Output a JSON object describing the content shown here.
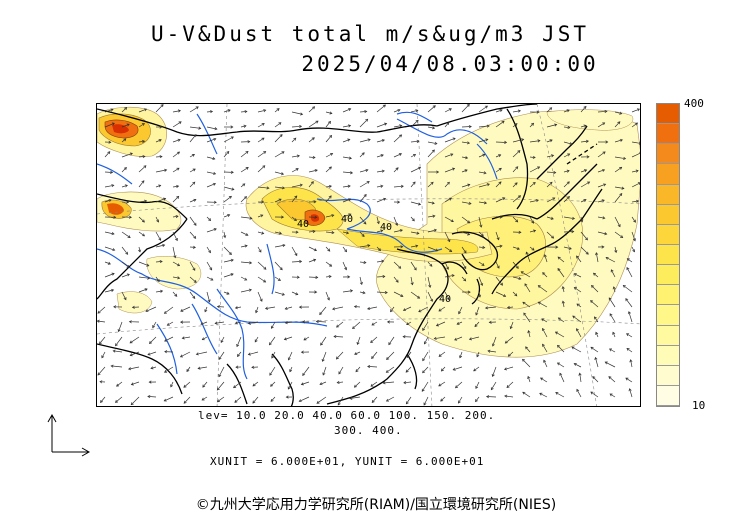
{
  "title": {
    "line1": "U-V&Dust total m/s&ug/m3 JST",
    "line2": "2025/04/08.03:00:00"
  },
  "colorbar": {
    "max_label": "400",
    "min_label": "10",
    "colors": [
      "#e65c00",
      "#f07010",
      "#f58a1c",
      "#f8a020",
      "#fab728",
      "#fbc830",
      "#fcd63a",
      "#fde44a",
      "#fdec5c",
      "#fef270",
      "#fff888",
      "#fffaa0",
      "#fffcb8",
      "#fffdd0",
      "#fffee4"
    ]
  },
  "contour_levels": {
    "line1": "lev= 10.0 20.0 40.0 60.0 100. 150. 200.",
    "line2": "300. 400."
  },
  "units_text": "XUNIT = 6.000E+01, YUNIT = 6.000E+01",
  "map_labels": [
    "40",
    "40",
    "40",
    "40"
  ],
  "copyright": "©九州大学応用力学研究所(RIAM)/国立環境研究所(NIES)"
}
